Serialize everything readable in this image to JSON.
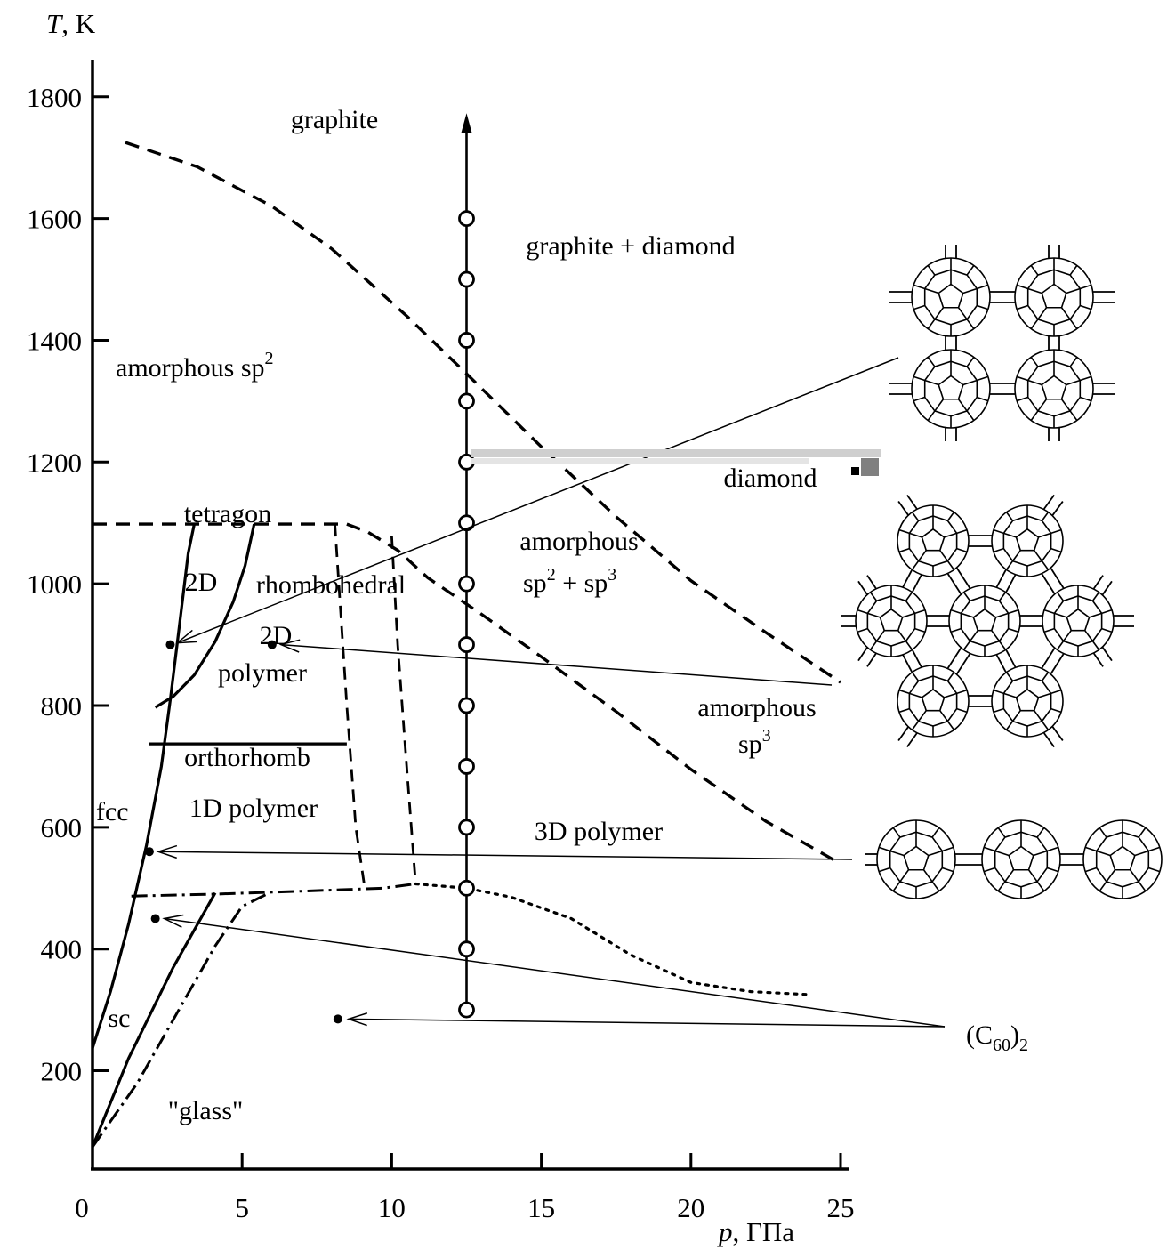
{
  "chart_data": {
    "type": "phase-diagram",
    "xlabel_var": "p",
    "xlabel_unit": ", ГПа",
    "ylabel_var": "T",
    "ylabel_unit": ", K",
    "xlim": [
      0,
      25
    ],
    "ylim": [
      60,
      1800
    ],
    "x_ticks": [
      {
        "value": 0,
        "label": "0"
      },
      {
        "value": 5,
        "label": "5"
      },
      {
        "value": 10,
        "label": "10"
      },
      {
        "value": 15,
        "label": "15"
      },
      {
        "value": 20,
        "label": "20"
      },
      {
        "value": 25,
        "label": "25"
      }
    ],
    "y_ticks": [
      {
        "value": 200,
        "label": "200"
      },
      {
        "value": 400,
        "label": "400"
      },
      {
        "value": 600,
        "label": "600"
      },
      {
        "value": 800,
        "label": "800"
      },
      {
        "value": 1000,
        "label": "1000"
      },
      {
        "value": 1200,
        "label": "1200"
      },
      {
        "value": 1400,
        "label": "1400"
      },
      {
        "value": 1600,
        "label": "1600"
      },
      {
        "value": 1800,
        "label": "1800"
      }
    ],
    "region_labels": [
      {
        "id": "graphite",
        "text": "graphite",
        "x": 8.2,
        "y": 1690
      },
      {
        "id": "graphite-diamond",
        "text": "graphite + diamond",
        "x": 15.7,
        "y": 1485
      },
      {
        "id": "amorphous-sp2",
        "text": "amorphous sp",
        "sup": "2",
        "x": 2.8,
        "y": 1290
      },
      {
        "id": "diamond",
        "text": "diamond",
        "x": 22.4,
        "y": 1120
      },
      {
        "id": "tetragon",
        "text": "tetragon",
        "x": 4.5,
        "y": 1070
      },
      {
        "id": "amorphous-sp2-sp3-line1",
        "text": "amorphous",
        "x": 16.4,
        "y": 1005
      },
      {
        "id": "amorphous-sp2-sp3-line2",
        "text": "sp2 + sp3",
        "x": 16.4,
        "y": 945
      },
      {
        "id": "rhombohedral-2d",
        "text": "2D",
        "x": 3.8,
        "y": 945
      },
      {
        "id": "rhombohedral",
        "text": "rhombohedral",
        "x": 8.3,
        "y": 945
      },
      {
        "id": "polymer-2d",
        "text": "2D",
        "x": 6.2,
        "y": 855
      },
      {
        "id": "polymer-2d-word",
        "text": "polymer",
        "x": 6.0,
        "y": 790
      },
      {
        "id": "amorphous-sp3-line1",
        "text": "amorphous",
        "x": 22.0,
        "y": 775
      },
      {
        "id": "amorphous-sp3-line2",
        "text": "sp3",
        "x": 22.0,
        "y": 715
      },
      {
        "id": "orthorhomb",
        "text": "orthorhomb",
        "x": 3.5,
        "y": 650
      },
      {
        "id": "fcc",
        "text": "fcc",
        "x": 0.7,
        "y": 580
      },
      {
        "id": "polymer-1d",
        "text": "1D polymer",
        "x": 5.6,
        "y": 580
      },
      {
        "id": "polymer-3d",
        "text": "3D polymer",
        "x": 16.8,
        "y": 525
      },
      {
        "id": "sc",
        "text": "sc",
        "x": 0.9,
        "y": 225
      },
      {
        "id": "glass",
        "text": "\"glass\"",
        "x": 3.8,
        "y": 95
      },
      {
        "id": "c60-dimer",
        "text": "(C60)2"
      }
    ],
    "phase_boundaries": [
      {
        "id": "graphite-upper-dashed",
        "style": "dashed",
        "points": [
          [
            1.1,
            1725
          ],
          [
            3.5,
            1685
          ],
          [
            6,
            1620
          ],
          [
            8,
            1550
          ],
          [
            10.5,
            1440
          ],
          [
            12.5,
            1345
          ],
          [
            15,
            1225
          ],
          [
            17.5,
            1110
          ],
          [
            20,
            1005
          ],
          [
            22.5,
            920
          ],
          [
            25,
            838
          ]
        ]
      },
      {
        "id": "lower-dashed-to-25",
        "style": "dashed",
        "points": [
          [
            8.5,
            1098
          ],
          [
            9.2,
            1085
          ],
          [
            10.2,
            1055
          ],
          [
            11.2,
            1010
          ],
          [
            13,
            950
          ],
          [
            15,
            880
          ],
          [
            17.5,
            790
          ],
          [
            20,
            695
          ],
          [
            22.5,
            610
          ],
          [
            25,
            540
          ]
        ]
      },
      {
        "id": "top-horizontal-dashed",
        "style": "dashed",
        "points": [
          [
            0,
            1098
          ],
          [
            8.5,
            1098
          ]
        ]
      },
      {
        "id": "fcc-boundary",
        "style": "solid",
        "points": [
          [
            0,
            237
          ],
          [
            0.6,
            330
          ],
          [
            1.2,
            440
          ],
          [
            1.8,
            570
          ],
          [
            2.3,
            700
          ],
          [
            2.6,
            810
          ],
          [
            2.9,
            930
          ],
          [
            3.2,
            1050
          ],
          [
            3.4,
            1098
          ]
        ]
      },
      {
        "id": "rhombo-curve",
        "style": "solid",
        "points": [
          [
            2.1,
            797
          ],
          [
            2.7,
            815
          ],
          [
            3.4,
            850
          ],
          [
            4.1,
            905
          ],
          [
            4.7,
            970
          ],
          [
            5.1,
            1030
          ],
          [
            5.4,
            1098
          ]
        ]
      },
      {
        "id": "orthorhomb-top",
        "style": "solid",
        "points": [
          [
            1.9,
            737
          ],
          [
            8.5,
            737
          ]
        ]
      },
      {
        "id": "glass-line-1",
        "style": "solid",
        "points": [
          [
            0,
            75
          ],
          [
            1.2,
            220
          ],
          [
            2.7,
            370
          ],
          [
            4.1,
            492
          ]
        ]
      },
      {
        "id": "glass-line-2",
        "style": "dashdot",
        "points": [
          [
            0,
            75
          ],
          [
            1.5,
            180
          ],
          [
            3,
            310
          ],
          [
            4.1,
            405
          ],
          [
            5,
            470
          ],
          [
            5.9,
            492
          ]
        ]
      },
      {
        "id": "polymer-bottom-dashdot",
        "style": "dashdot",
        "points": [
          [
            1.3,
            487
          ],
          [
            4,
            490
          ],
          [
            7,
            495
          ],
          [
            9.7,
            500
          ],
          [
            10.8,
            507
          ]
        ]
      },
      {
        "id": "rhombo-right-dashed",
        "style": "dashed-thin",
        "points": [
          [
            8.1,
            1098
          ],
          [
            8.5,
            800
          ],
          [
            8.8,
            600
          ],
          [
            9.1,
            500
          ]
        ]
      },
      {
        "id": "3d-left-dashed",
        "style": "dashed-thin",
        "points": [
          [
            10.0,
            1078
          ],
          [
            10.2,
            900
          ],
          [
            10.5,
            700
          ],
          [
            10.8,
            507
          ]
        ]
      },
      {
        "id": "3d-bottom-dotted",
        "style": "dotted",
        "points": [
          [
            10.8,
            507
          ],
          [
            12.5,
            500
          ],
          [
            14,
            485
          ],
          [
            16,
            450
          ],
          [
            18,
            390
          ],
          [
            20,
            345
          ],
          [
            22,
            330
          ],
          [
            24,
            325
          ]
        ]
      }
    ],
    "experiment_path": {
      "x": 12.5,
      "y_start": 300,
      "y_end": 1770,
      "points": [
        300,
        400,
        500,
        600,
        700,
        800,
        900,
        1000,
        1100,
        1200,
        1300,
        1400,
        1500,
        1600
      ]
    },
    "sample_points": [
      {
        "id": "dot-2d-tetragonal",
        "x": 2.6,
        "y": 900
      },
      {
        "id": "dot-2d-rhombo",
        "x": 6.0,
        "y": 900
      },
      {
        "id": "dot-fcc",
        "x": 1.9,
        "y": 560
      },
      {
        "id": "dot-dimer-1",
        "x": 2.1,
        "y": 450
      },
      {
        "id": "dot-dimer-2",
        "x": 8.2,
        "y": 285
      }
    ]
  }
}
